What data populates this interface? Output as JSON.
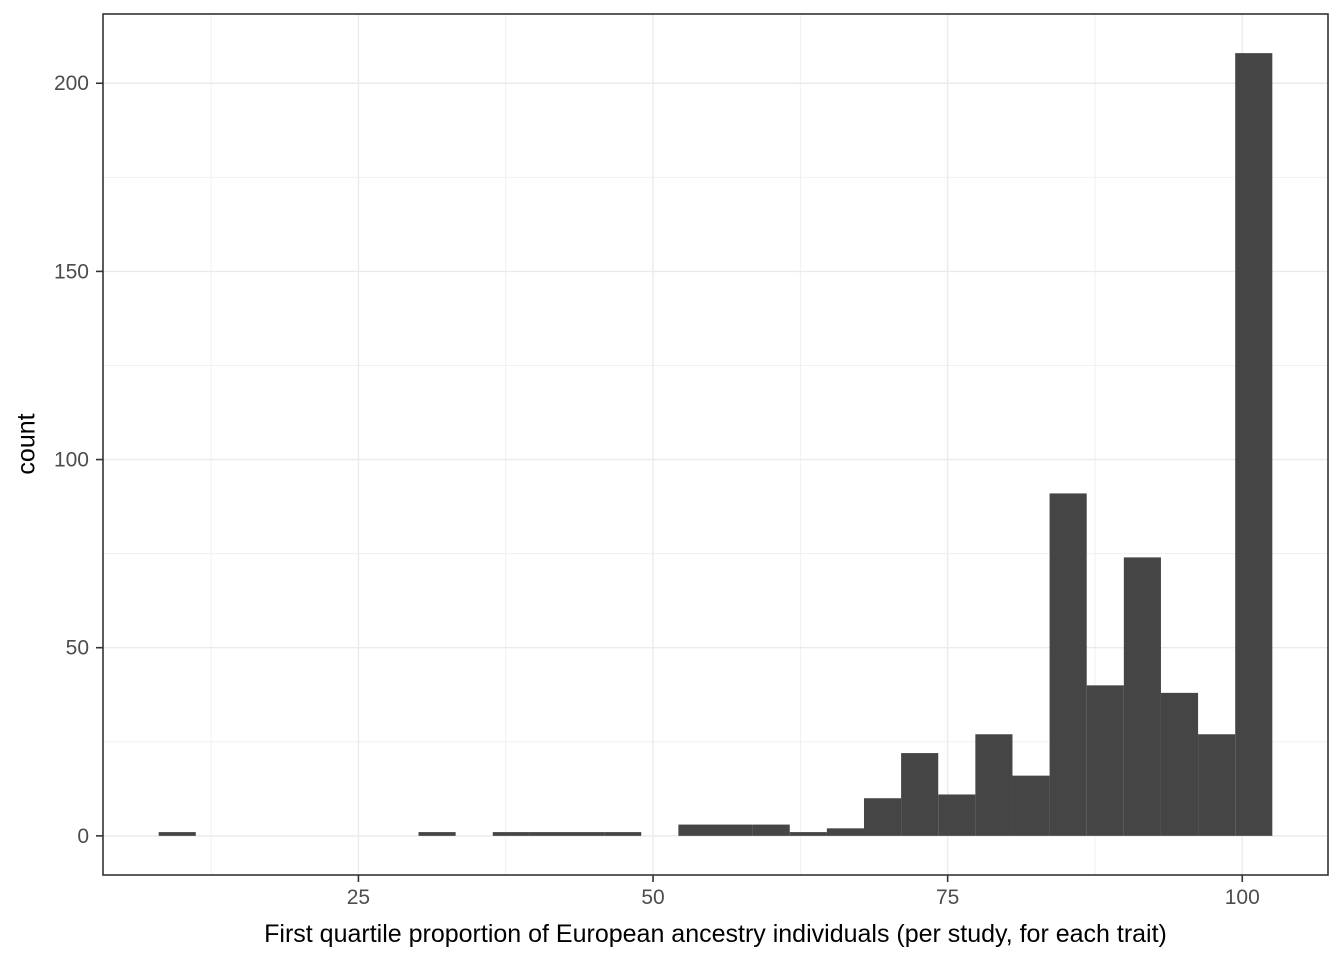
{
  "chart_data": {
    "type": "bar",
    "subtype": "histogram",
    "title": "",
    "xlabel": "First quartile proportion of European ancestry individuals (per study, for each trait)",
    "ylabel": "count",
    "bin_start": 8.05,
    "bin_width": 3.15,
    "counts": [
      1,
      0,
      0,
      0,
      0,
      0,
      0,
      1,
      0,
      1,
      1,
      1,
      1,
      0,
      3,
      3,
      3,
      1,
      2,
      10,
      22,
      11,
      27,
      16,
      91,
      40,
      74,
      38,
      27,
      208
    ],
    "bin_centers": [
      9.6,
      12.8,
      15.9,
      19.1,
      22.2,
      25.4,
      28.5,
      31.7,
      34.8,
      38.0,
      41.1,
      44.3,
      47.4,
      50.6,
      53.7,
      56.9,
      60.0,
      63.2,
      66.3,
      69.5,
      72.6,
      75.8,
      78.9,
      82.1,
      85.2,
      88.4,
      91.5,
      94.7,
      97.8,
      101.0
    ],
    "xlim": [
      3.325,
      107.275
    ],
    "ylim": [
      -10.4,
      218.4
    ],
    "x_ticks": [
      25,
      50,
      75,
      100
    ],
    "y_ticks": [
      0,
      50,
      100,
      150,
      200
    ],
    "x_minor_gridlines": [
      12.5,
      37.5,
      62.5,
      87.5
    ],
    "y_minor_gridlines": [
      25,
      75,
      125,
      175
    ],
    "grid": "on",
    "legend": "none",
    "colors": {
      "bar_fill": "#454545",
      "panel_background": "#ffffff",
      "panel_border": "#333333",
      "grid_major": "#ebebeb",
      "grid_minor": "#efefef",
      "tick_mark": "#333333",
      "tick_label": "#4d4d4d",
      "axis_title": "#000000"
    }
  }
}
